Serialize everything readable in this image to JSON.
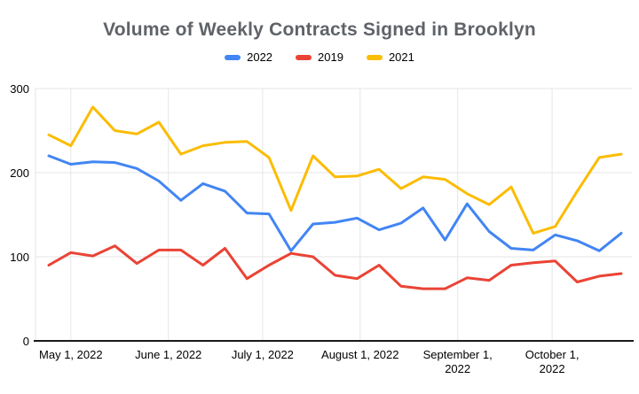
{
  "chart_data": {
    "type": "line",
    "title": "Volume of Weekly Contracts Signed in Brooklyn",
    "x_unit": "week",
    "n_points": 27,
    "ylim": [
      0,
      300
    ],
    "y_ticks": [
      0,
      100,
      200,
      300
    ],
    "grid": true,
    "legend_position": "top",
    "series": [
      {
        "name": "2022",
        "color": "#4285F4",
        "values": [
          220,
          210,
          213,
          212,
          205,
          190,
          167,
          187,
          178,
          152,
          151,
          107,
          139,
          141,
          146,
          132,
          140,
          158,
          120,
          163,
          130,
          110,
          108,
          126,
          119,
          107,
          128
        ]
      },
      {
        "name": "2019",
        "color": "#EA4335",
        "values": [
          90,
          105,
          101,
          113,
          92,
          108,
          108,
          90,
          110,
          74,
          90,
          104,
          100,
          78,
          74,
          90,
          65,
          62,
          62,
          75,
          72,
          90,
          93,
          95,
          70,
          77,
          80
        ]
      },
      {
        "name": "2021",
        "color": "#FBBC04",
        "values": [
          245,
          232,
          278,
          250,
          246,
          260,
          222,
          232,
          236,
          237,
          218,
          155,
          220,
          195,
          196,
          204,
          181,
          195,
          192,
          175,
          162,
          183,
          128,
          136,
          178,
          218,
          222
        ]
      }
    ],
    "x_ticks": [
      {
        "label": "May 1, 2022",
        "label2": "",
        "week": 1
      },
      {
        "label": "June 1, 2022",
        "label2": "",
        "week": 5.43
      },
      {
        "label": "July 1, 2022",
        "label2": "",
        "week": 9.71
      },
      {
        "label": "August 1, 2022",
        "label2": "",
        "week": 14.14
      },
      {
        "label": "September 1,",
        "label2": "2022",
        "week": 18.57
      },
      {
        "label": "October 1,",
        "label2": "2022",
        "week": 22.86
      }
    ],
    "colors": {
      "grid": "#e6e6e6",
      "axis": "#1a1a1a",
      "title": "#5f6368",
      "tick_text": "#000000",
      "background": "#ffffff"
    }
  }
}
